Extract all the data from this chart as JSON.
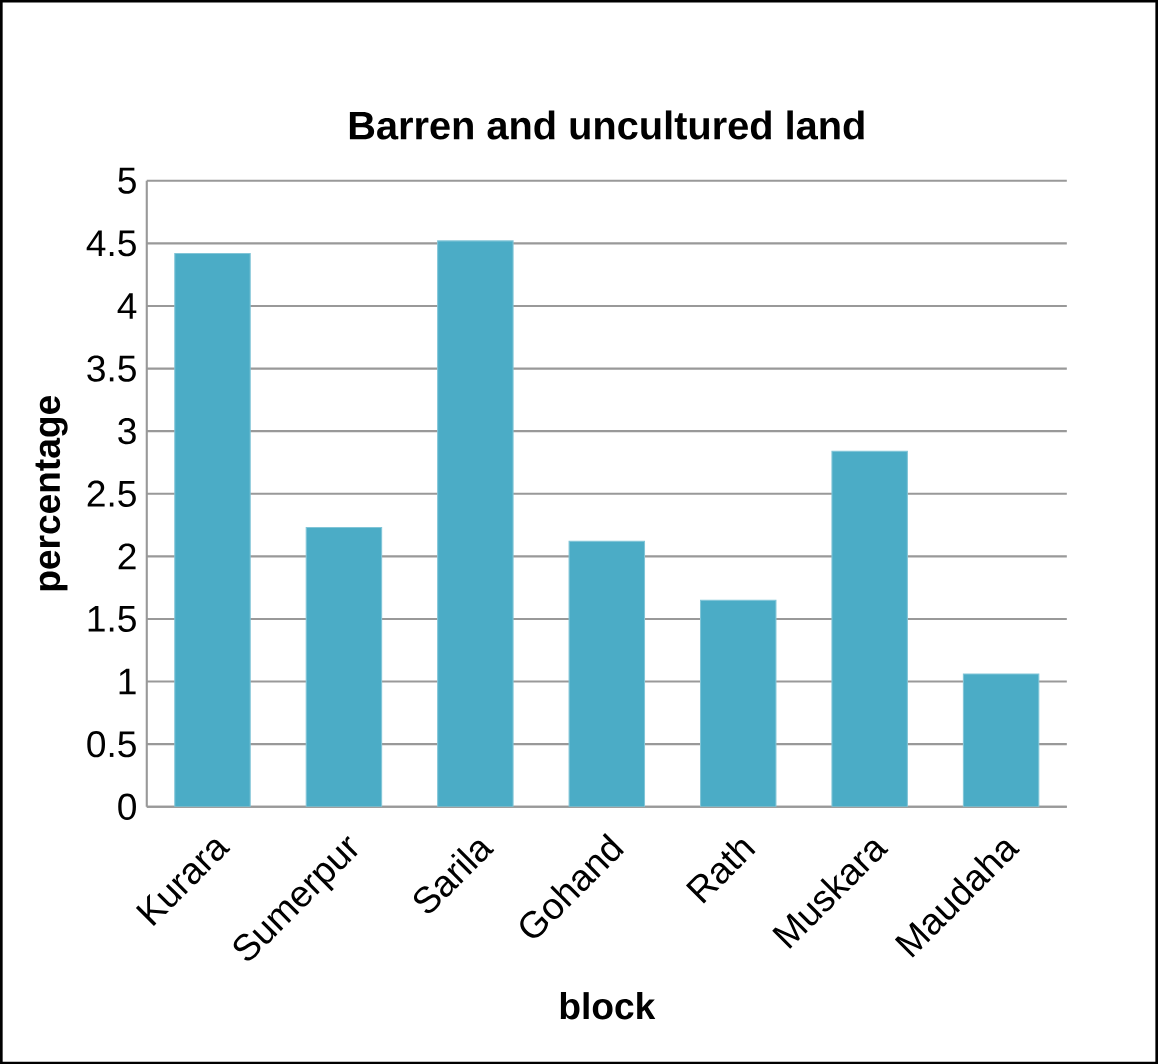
{
  "chart_data": {
    "type": "bar",
    "title": "Barren and uncultured land",
    "xlabel": "block",
    "ylabel": "percentage",
    "categories": [
      "Kurara",
      "Sumerpur",
      "Sarila",
      "Gohand",
      "Rath",
      "Muskara",
      "Maudaha"
    ],
    "values": [
      4.42,
      2.23,
      4.52,
      2.12,
      1.65,
      2.84,
      1.06
    ],
    "color": "#4bacc6",
    "ylim": [
      0,
      5
    ],
    "yticks": [
      0,
      0.5,
      1,
      1.5,
      2,
      2.5,
      3,
      3.5,
      4,
      4.5,
      5
    ],
    "grid": "y"
  }
}
